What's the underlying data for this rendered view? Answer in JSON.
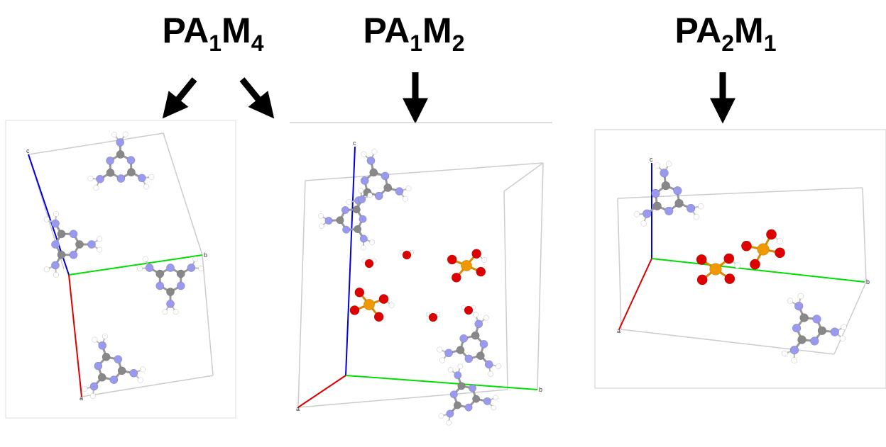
{
  "panels": [
    {
      "title": [
        "PA",
        "1",
        "M",
        "4"
      ],
      "axes": [
        "c",
        "b",
        "a"
      ]
    },
    {
      "title": [
        "PA",
        "1",
        "M",
        "2"
      ],
      "axes": [
        "c",
        "b",
        "a"
      ]
    },
    {
      "title": [
        "PA",
        "2",
        "M",
        "1"
      ],
      "axes": [
        "c",
        "b",
        "a"
      ]
    }
  ]
}
